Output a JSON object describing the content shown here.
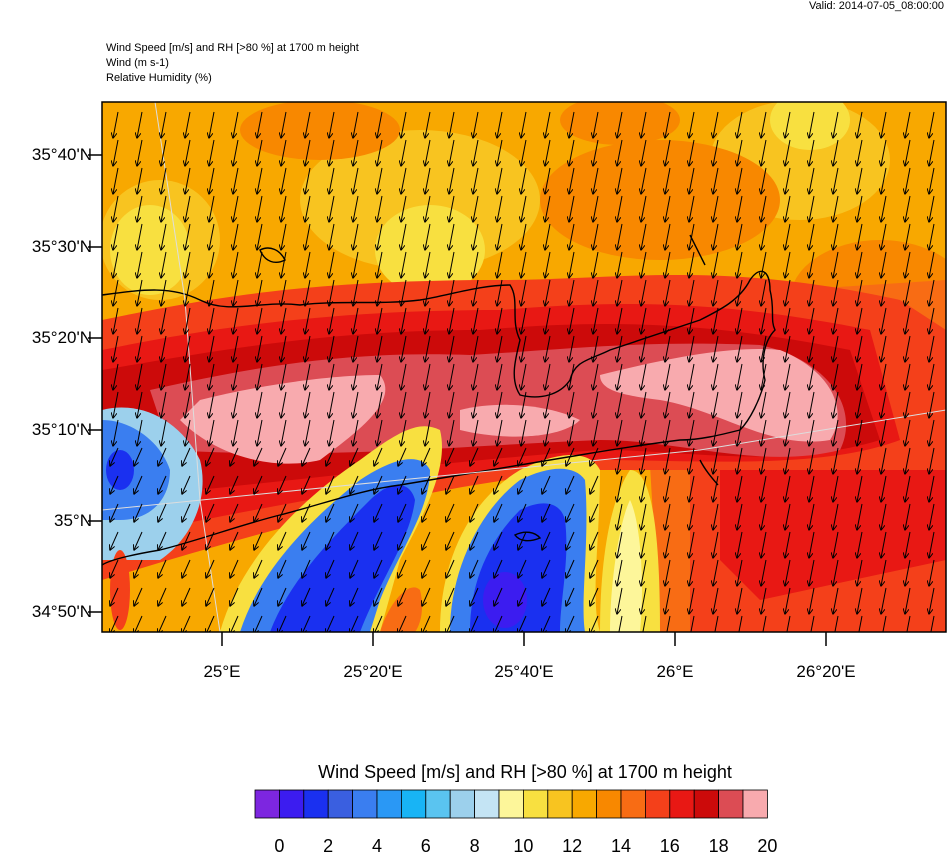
{
  "header": {
    "valid": "Valid: 2014-07-05_08:00:00",
    "line1": "Wind Speed [m/s] and RH [>80 %] at 1700 m height",
    "line2": "Wind   (m s-1)",
    "line3": "Relative Humidity   (%)"
  },
  "map": {
    "lat_labels": [
      "35°40'N",
      "35°30'N",
      "35°20'N",
      "35°10'N",
      "35°N",
      "34°50'N"
    ],
    "lon_labels": [
      "25°E",
      "25°20'E",
      "25°40'E",
      "26°E",
      "26°20'E"
    ],
    "wind_direction": "from north (arrows pointing south)"
  },
  "colorbar": {
    "title": "Wind Speed [m/s] and RH [>80 %] at 1700 m height",
    "labels": [
      "0",
      "2",
      "4",
      "6",
      "8",
      "10",
      "12",
      "14",
      "16",
      "18",
      "20"
    ],
    "colors": [
      "#7d26e0",
      "#3c1cf0",
      "#1a30f0",
      "#3a5fe0",
      "#3a7ef0",
      "#2a98f5",
      "#18b4f5",
      "#5ac4f0",
      "#9cd0ec",
      "#c4e4f4",
      "#fdf69a",
      "#f8e040",
      "#f8c420",
      "#f8a800",
      "#f88800",
      "#f86c14",
      "#f4401a",
      "#e81814",
      "#cc0a0a",
      "#dc4c54",
      "#f8aaae"
    ]
  }
}
